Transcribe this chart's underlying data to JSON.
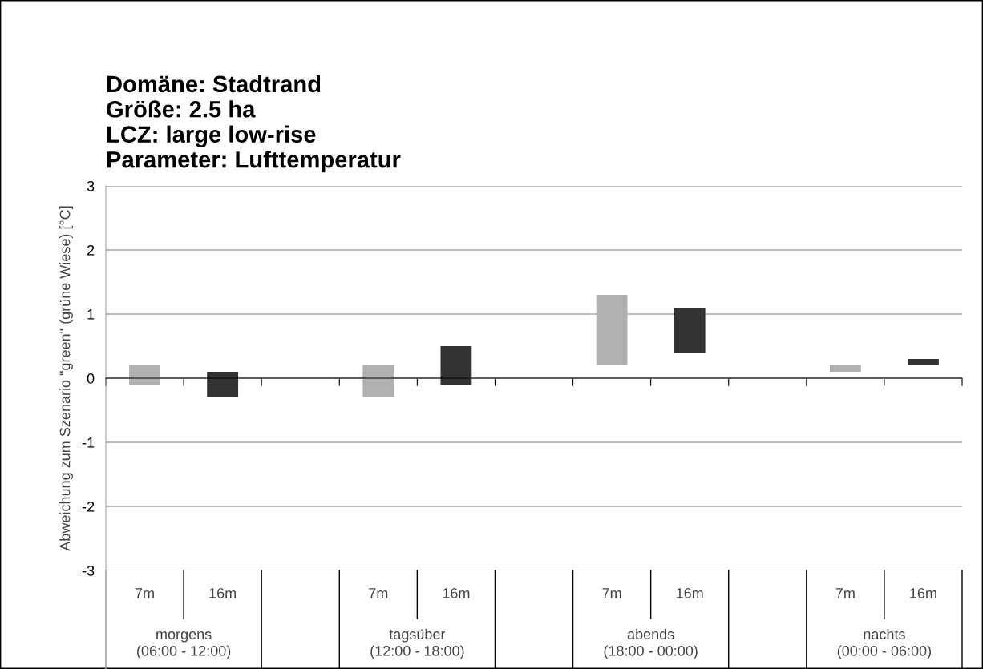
{
  "chart_data": {
    "type": "bar",
    "title": "Domäne: Stadtrand\nGröße: 2.5 ha\nLCZ: large low-rise\nParameter: Lufttemperatur",
    "ylabel": "Abweichung zum Szenario \"green\" (grüne Wiese) [°C]",
    "categories": [
      "7m",
      "16m",
      null,
      "7m",
      "16m",
      null,
      "7m",
      "16m",
      null,
      "7m",
      "16m"
    ],
    "values": [
      0.3,
      0.4,
      null,
      0.5,
      0.6,
      null,
      1.1,
      0.7,
      null,
      0.1,
      0.1
    ],
    "base": [
      -0.1,
      -0.3,
      null,
      -0.3,
      -0.1,
      null,
      0.2,
      0.4,
      null,
      0.1,
      0.2
    ],
    "colors": [
      "#b0b0b0",
      "#333333",
      null,
      "#b0b0b0",
      "#333333",
      null,
      "#b0b0b0",
      "#333333",
      null,
      "#b0b0b0",
      "#333333"
    ],
    "annotations": [
      "morgens\n(06:00 - 12:00)",
      "tagsüber\n(12:00 - 18:00)",
      "abends\n(18:00 - 00:00)",
      "nachts\n(00:00 - 06:00)"
    ],
    "ylim": [
      -3,
      3
    ],
    "yticks": [
      -3,
      -2,
      -1,
      0,
      1,
      2,
      3
    ],
    "grid": "y"
  }
}
